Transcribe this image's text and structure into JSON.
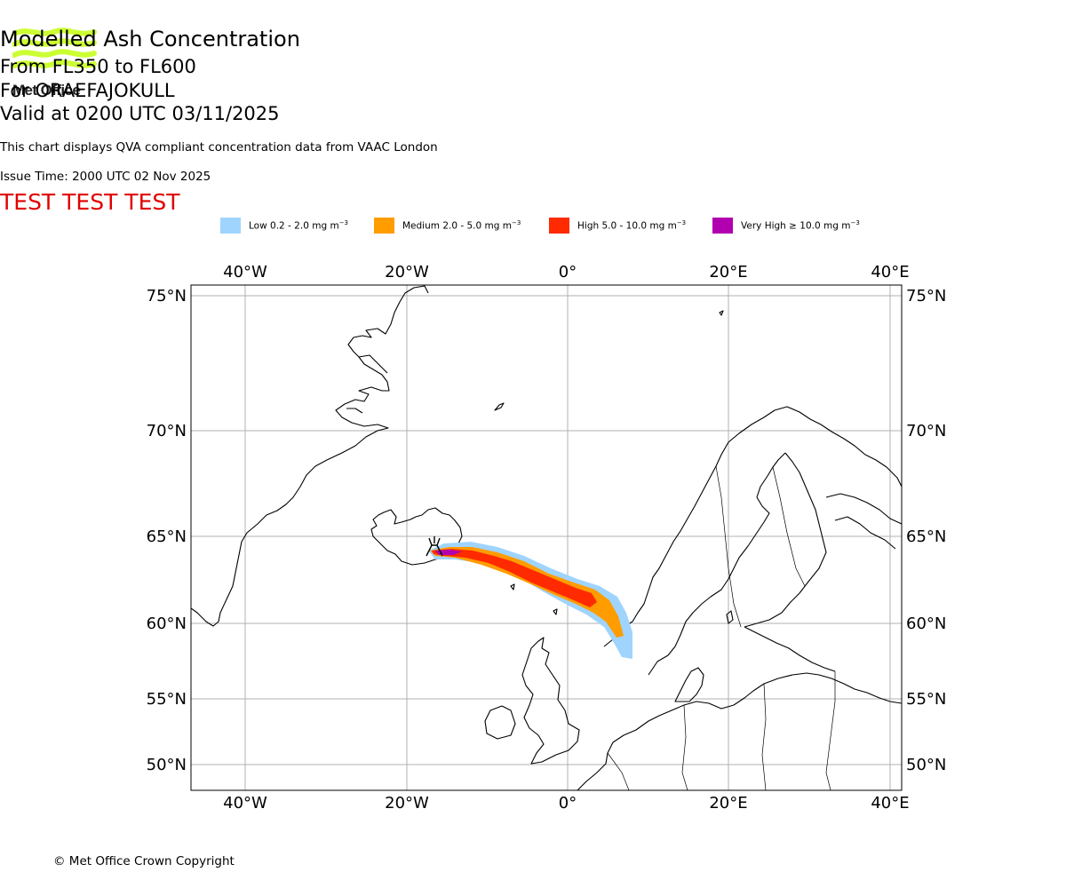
{
  "logo": {
    "text": "Met Office",
    "icon": "met-office-waves-logo",
    "color": "#ccff33"
  },
  "title": {
    "line1": "Modelled Ash Concentration",
    "line2": "From FL350 to FL600",
    "line3": "For ORAEFAJOKULL",
    "line4": "Valid at 0200 UTC 03/11/2025"
  },
  "subtitle": "This chart displays QVA compliant concentration data from VAAC London",
  "issue_time": "Issue Time: 2000 UTC 02 Nov 2025",
  "test_banner": {
    "text": "TEST TEST TEST",
    "color": "#e00000"
  },
  "legend": [
    {
      "label": "Low 0.2 - 2.0 mg m",
      "color": "#9fd4ff"
    },
    {
      "label": "Medium 2.0 - 5.0 mg m",
      "color": "#ff9c00"
    },
    {
      "label": "High 5.0 - 10.0 mg m",
      "color": "#ff2a00"
    },
    {
      "label": "Very High ≥ 10.0 mg m",
      "color": "#b000b0"
    }
  ],
  "legend_unit_exponent": "−3",
  "map": {
    "lon_labels": [
      "40°W",
      "20°W",
      "0°",
      "20°E",
      "40°E"
    ],
    "lat_labels": [
      "75°N",
      "70°N",
      "65°N",
      "60°N",
      "55°N",
      "50°N"
    ],
    "lon_range": [
      -46.5,
      41.5
    ],
    "lat_range": [
      48.5,
      75.3
    ],
    "gridlines": true,
    "volcano": {
      "name": "ORAEFAJOKULL",
      "lon": -16.6,
      "lat": 64.0
    }
  },
  "copyright": "© Met Office Crown Copyright"
}
